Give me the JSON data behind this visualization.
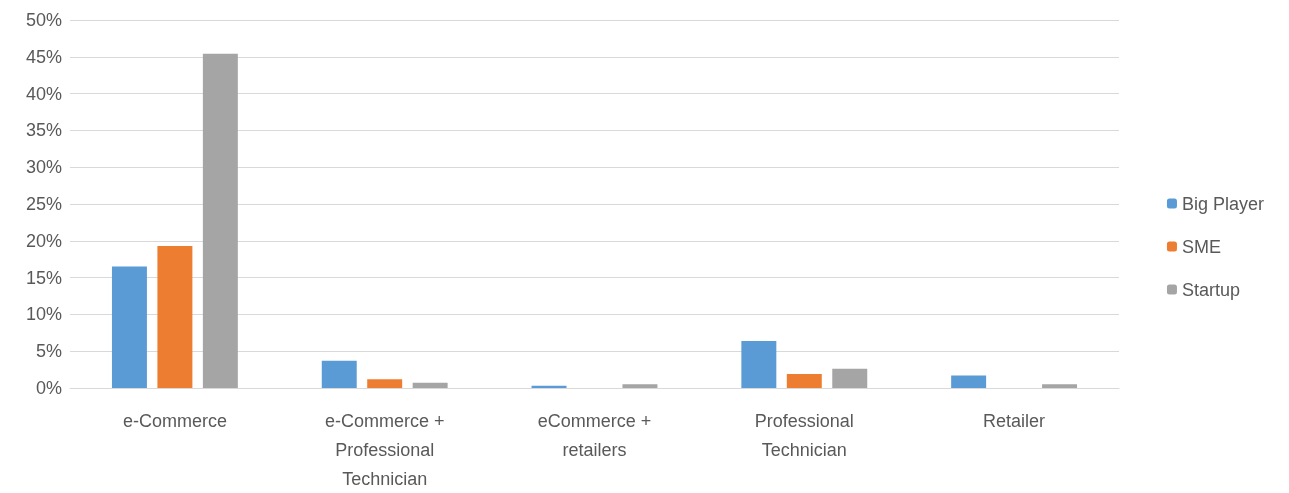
{
  "chart_data": {
    "type": "bar",
    "categories": [
      "e-Commerce",
      "e-Commerce + Professional Technician",
      "eCommerce + retailers",
      "Professional Technician",
      "Retailer"
    ],
    "series": [
      {
        "name": "Big Player",
        "color": "#5b9bd5",
        "values": [
          16.5,
          3.7,
          0.3,
          6.4,
          1.7
        ]
      },
      {
        "name": "SME",
        "color": "#ed7d31",
        "values": [
          19.3,
          1.2,
          0,
          1.9,
          0
        ]
      },
      {
        "name": "Startup",
        "color": "#a5a5a5",
        "values": [
          45.4,
          0.7,
          0.5,
          2.6,
          0.5
        ]
      }
    ],
    "ylim": [
      0,
      50
    ],
    "yticks": [
      {
        "value": 0,
        "label": "0%"
      },
      {
        "value": 5,
        "label": "5%"
      },
      {
        "value": 10,
        "label": "10%"
      },
      {
        "value": 15,
        "label": "15%"
      },
      {
        "value": 20,
        "label": "20%"
      },
      {
        "value": 25,
        "label": "25%"
      },
      {
        "value": 30,
        "label": "30%"
      },
      {
        "value": 35,
        "label": "35%"
      },
      {
        "value": 40,
        "label": "40%"
      },
      {
        "value": 45,
        "label": "45%"
      },
      {
        "value": 50,
        "label": "50%"
      }
    ],
    "grid": "y",
    "legend": "right"
  }
}
